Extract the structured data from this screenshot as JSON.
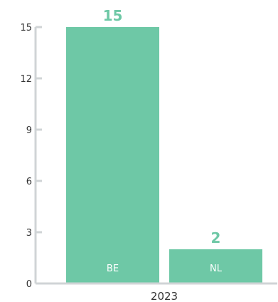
{
  "chart_data": {
    "type": "bar",
    "categories": [
      "BE",
      "NL"
    ],
    "values": [
      15,
      2
    ],
    "group_label": "2023",
    "ylim": [
      0,
      15
    ],
    "yticks": [
      0,
      3,
      6,
      9,
      12,
      15
    ],
    "grid": false,
    "legend": "none",
    "colors": {
      "bar": "#6ec8a6",
      "value_label": "#6ec8a6",
      "axis": "#d0d4d6"
    }
  }
}
